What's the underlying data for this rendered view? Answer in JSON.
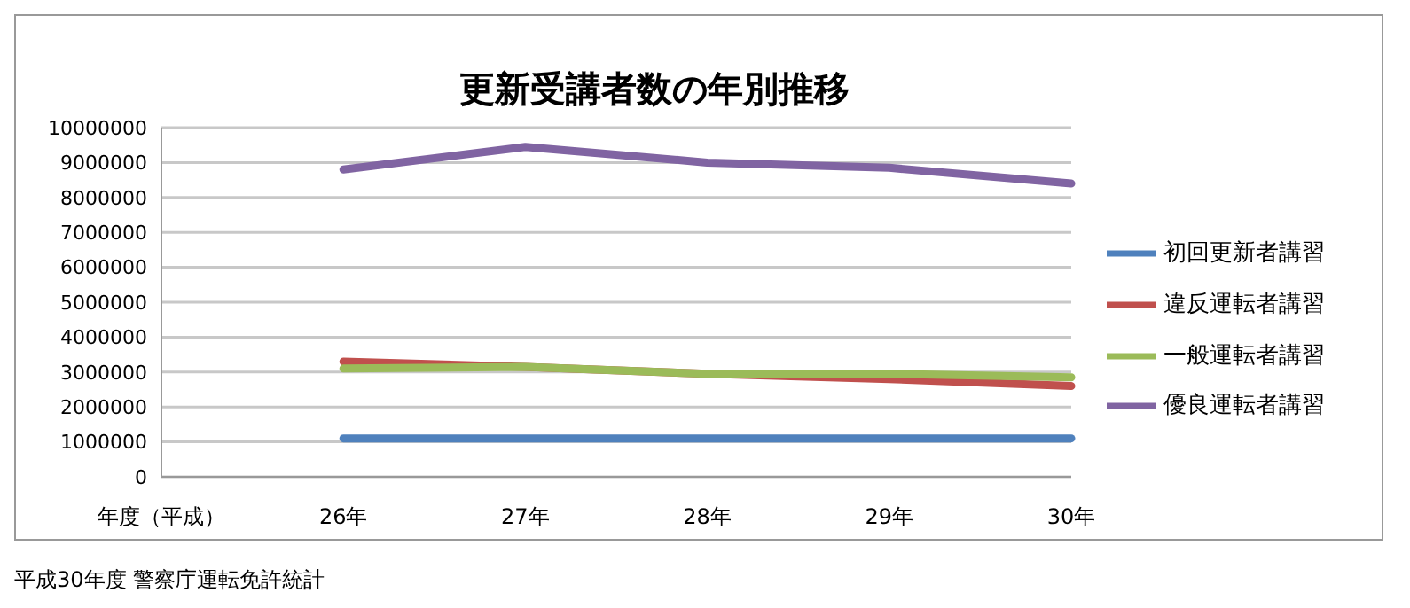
{
  "chart_data": {
    "type": "line",
    "title": "更新受講者数の年別推移",
    "categories": [
      "年度（平成）",
      "26年",
      "27年",
      "28年",
      "29年",
      "30年"
    ],
    "series": [
      {
        "name": "初回更新者講習",
        "color": "#4f81bd",
        "values": [
          null,
          1100000,
          1100000,
          1100000,
          1100000,
          1100000
        ]
      },
      {
        "name": "違反運転者講習",
        "color": "#c0504d",
        "values": [
          null,
          3300000,
          3150000,
          2950000,
          2800000,
          2600000
        ]
      },
      {
        "name": "一般運転者講習",
        "color": "#9bbb59",
        "values": [
          null,
          3100000,
          3150000,
          2950000,
          2950000,
          2850000
        ]
      },
      {
        "name": "優良運転者講習",
        "color": "#8064a2",
        "values": [
          null,
          8800000,
          9450000,
          9000000,
          8850000,
          8400000
        ]
      }
    ],
    "ylim": [
      0,
      10000000
    ],
    "yticks": [
      0,
      1000000,
      2000000,
      3000000,
      4000000,
      5000000,
      6000000,
      7000000,
      8000000,
      9000000,
      10000000
    ],
    "grid": "y",
    "legend": "right",
    "marker": "none",
    "line_style": "solid",
    "annotations": [
      "平成30年度 警察庁運転免許統計"
    ]
  }
}
